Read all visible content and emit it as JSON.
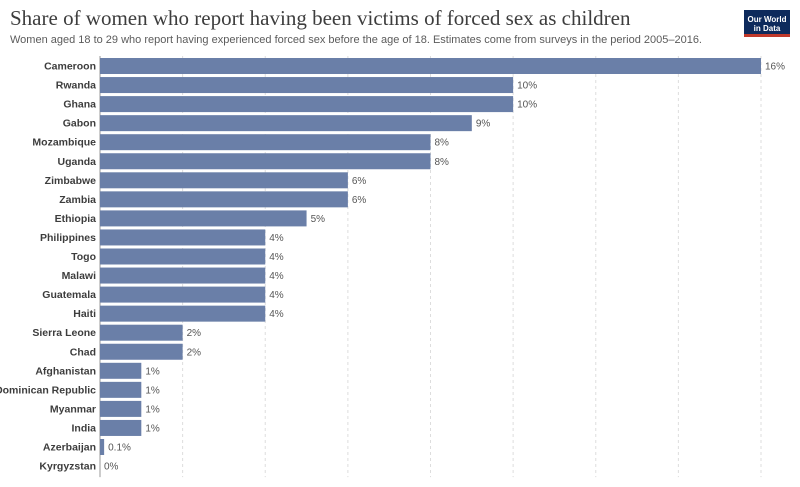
{
  "header": {
    "title": "Share of women who report having been victims of forced sex as children",
    "subtitle": "Women aged 18 to 29 who report having experienced forced sex before the age of 18. Estimates come from surveys in the period 2005–2016.",
    "logo_line1": "Our World",
    "logo_line2": "in Data"
  },
  "colors": {
    "bar": "#6a7fa8",
    "title": "#3d3d3d",
    "logo_bg": "#0d2a5c",
    "logo_accent": "#c0392b"
  },
  "chart_data": {
    "type": "bar",
    "orientation": "horizontal",
    "categories": [
      "Cameroon",
      "Rwanda",
      "Ghana",
      "Gabon",
      "Mozambique",
      "Uganda",
      "Zimbabwe",
      "Zambia",
      "Ethiopia",
      "Philippines",
      "Togo",
      "Malawi",
      "Guatemala",
      "Haiti",
      "Sierra Leone",
      "Chad",
      "Afghanistan",
      "Dominican Republic",
      "Myanmar",
      "India",
      "Azerbaijan",
      "Kyrgyzstan"
    ],
    "values": [
      16,
      10,
      10,
      9,
      8,
      8,
      6,
      6,
      5,
      4,
      4,
      4,
      4,
      4,
      2,
      2,
      1,
      1,
      1,
      1,
      0.1,
      0
    ],
    "value_labels": [
      "16%",
      "10%",
      "10%",
      "9%",
      "8%",
      "8%",
      "6%",
      "6%",
      "5%",
      "4%",
      "4%",
      "4%",
      "4%",
      "4%",
      "2%",
      "2%",
      "1%",
      "1%",
      "1%",
      "1%",
      "0.1%",
      "0%"
    ],
    "xlim": [
      0,
      16
    ],
    "grid": true
  }
}
